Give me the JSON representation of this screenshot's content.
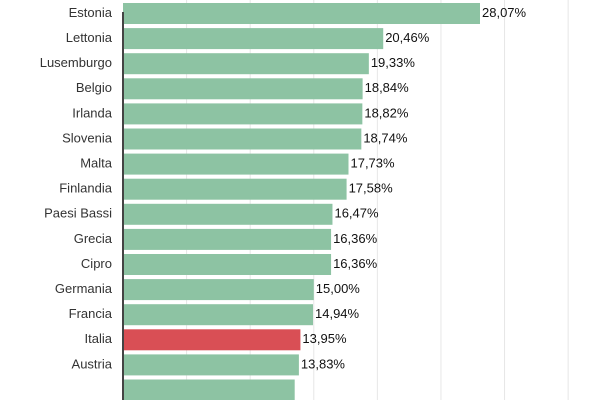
{
  "chart_data": {
    "type": "bar",
    "orientation": "horizontal",
    "title": "",
    "xlabel": "",
    "ylabel": "",
    "xlim": [
      0,
      35
    ],
    "grid": true,
    "legend": "none",
    "bar_color": "#8dc3a3",
    "highlight_color": "#d94f55",
    "highlight_category": "Italia",
    "categories": [
      "Estonia",
      "Lettonia",
      "Lusemburgo",
      "Belgio",
      "Irlanda",
      "Slovenia",
      "Malta",
      "Finlandia",
      "Paesi Bassi",
      "Grecia",
      "Cipro",
      "Germania",
      "Francia",
      "Italia",
      "Austria",
      ""
    ],
    "values": [
      28.07,
      20.46,
      19.33,
      18.84,
      18.82,
      18.74,
      17.73,
      17.58,
      16.47,
      16.36,
      16.36,
      15.0,
      14.94,
      13.95,
      13.83,
      13.5
    ],
    "value_labels": [
      "28,07%",
      "20,46%",
      "19,33%",
      "18,84%",
      "18,82%",
      "18,74%",
      "17,73%",
      "17,58%",
      "16,47%",
      "16,36%",
      "16,36%",
      "15,00%",
      "14,94%",
      "13,95%",
      "13,83%",
      ""
    ]
  }
}
